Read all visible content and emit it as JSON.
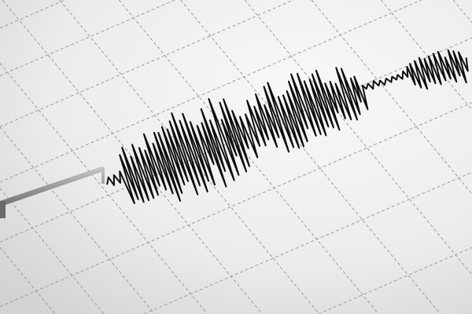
{
  "scene": {
    "subject": "seismograph-trace-on-grid-paper",
    "colors": {
      "paper_light": "#f7f7f7",
      "paper_dark": "#d4d4d4",
      "grid": "#9c9c9c",
      "trace": "#0d0d0d",
      "arm": "#8a8a8a"
    }
  }
}
